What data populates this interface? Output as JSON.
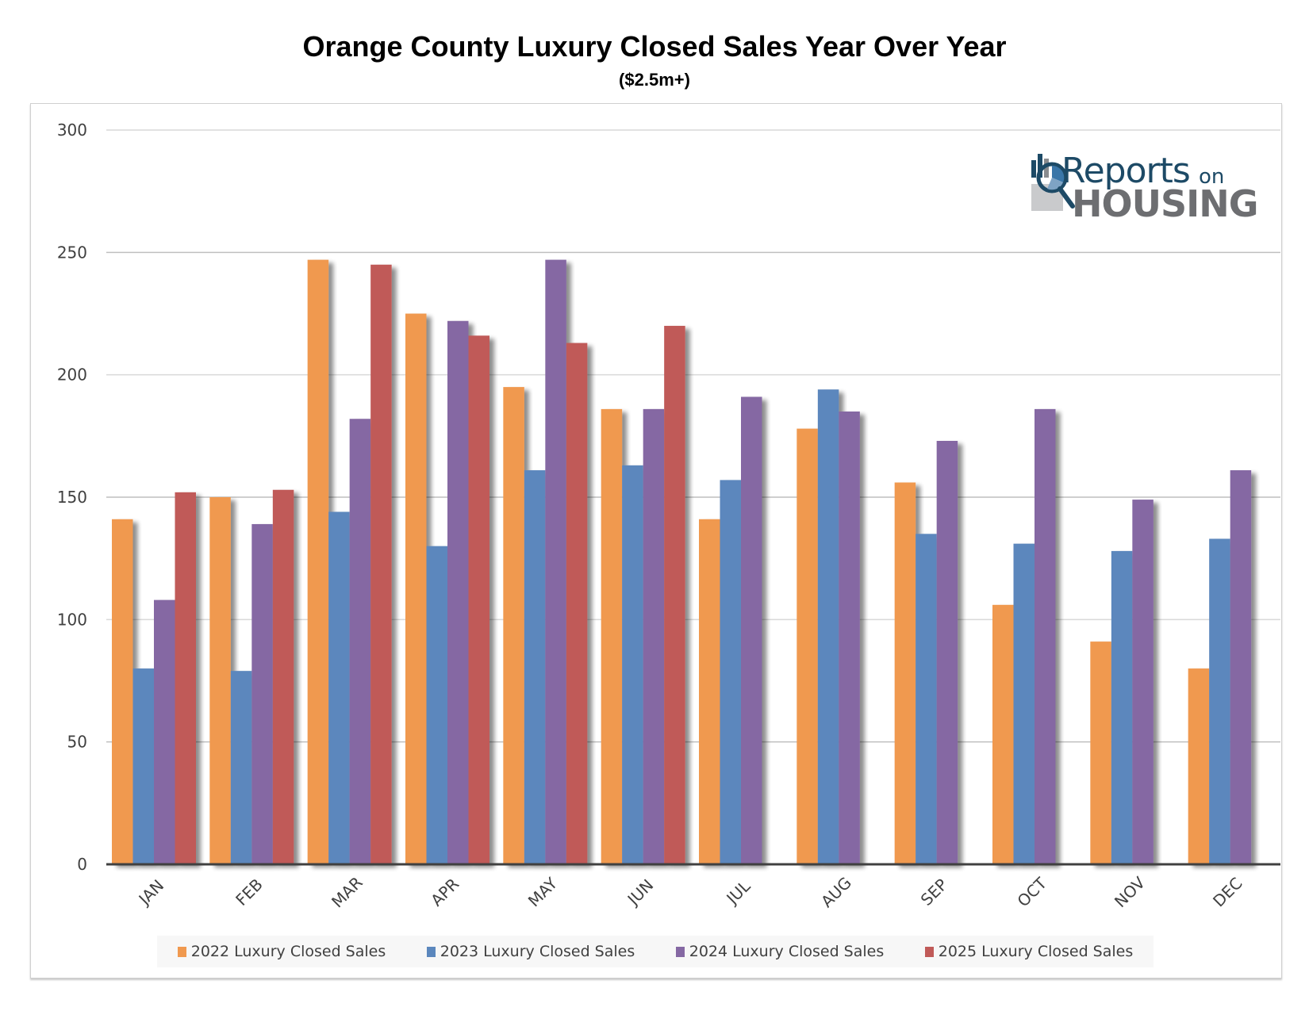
{
  "chart_data": {
    "type": "bar",
    "title": "Orange County Luxury Closed Sales Year Over Year",
    "subtitle": "($2.5m+)",
    "xlabel": "",
    "ylabel": "",
    "ylim": [
      0,
      300
    ],
    "yticks": [
      0,
      50,
      100,
      150,
      200,
      250,
      300
    ],
    "grid": true,
    "legend_position": "bottom",
    "categories": [
      "JAN",
      "FEB",
      "MAR",
      "APR",
      "MAY",
      "JUN",
      "JUL",
      "AUG",
      "SEP",
      "OCT",
      "NOV",
      "DEC"
    ],
    "series": [
      {
        "name": "2022 Luxury Closed Sales",
        "color": "#f0994f",
        "values": [
          141,
          150,
          247,
          225,
          195,
          186,
          141,
          178,
          156,
          106,
          91,
          80
        ]
      },
      {
        "name": "2023 Luxury Closed Sales",
        "color": "#5b87bd",
        "values": [
          80,
          79,
          144,
          130,
          161,
          163,
          157,
          194,
          135,
          131,
          128,
          133
        ]
      },
      {
        "name": "2024 Luxury Closed Sales",
        "color": "#8568a3",
        "values": [
          108,
          139,
          182,
          222,
          247,
          186,
          191,
          185,
          173,
          186,
          149,
          161
        ]
      },
      {
        "name": "2025 Luxury Closed Sales",
        "color": "#c05a58",
        "values": [
          152,
          153,
          245,
          216,
          213,
          220,
          null,
          null,
          null,
          null,
          null,
          null
        ]
      }
    ]
  },
  "logo": {
    "line1": "Reports",
    "line1_suffix": "on",
    "line2": "HOUSING"
  }
}
